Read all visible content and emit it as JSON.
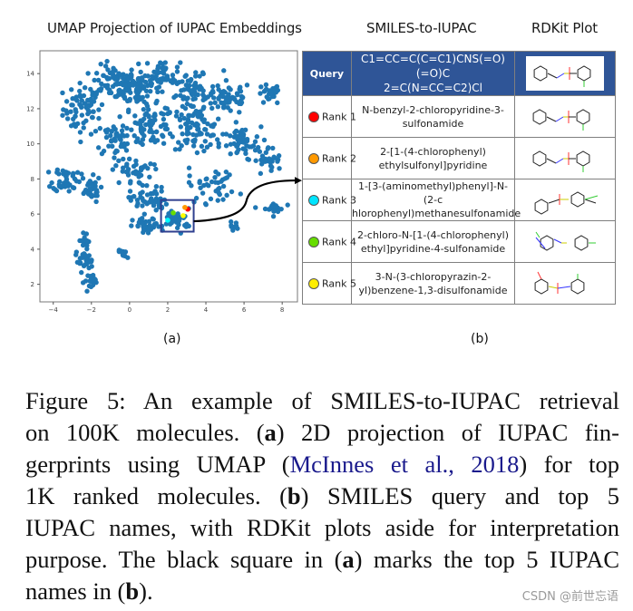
{
  "panel_titles": {
    "umap": "UMAP Projection of IUPAC Embeddings",
    "smiles_to_iupac": "SMILES-to-IUPAC",
    "rdkit": "RDKit Plot"
  },
  "chart_data": {
    "type": "scatter",
    "title": "UMAP Projection of IUPAC Embeddings",
    "xlabel": "",
    "ylabel": "",
    "xlim": [
      -4.7,
      8.8
    ],
    "ylim": [
      1.0,
      15.3
    ],
    "xticks": [
      -4,
      -2,
      0,
      2,
      4,
      6,
      8
    ],
    "yticks": [
      2,
      4,
      6,
      8,
      10,
      12,
      14
    ],
    "grid": false,
    "point_color": "#1f77b4",
    "n_points_approx": 1000,
    "clusters": [
      {
        "cx": -2.4,
        "cy": 12.0,
        "sx": 0.9,
        "sy": 1.2,
        "n": 70
      },
      {
        "cx": -0.8,
        "cy": 13.5,
        "sx": 1.0,
        "sy": 0.8,
        "n": 70
      },
      {
        "cx": 0.5,
        "cy": 13.2,
        "sx": 0.9,
        "sy": 1.0,
        "n": 80
      },
      {
        "cx": 1.8,
        "cy": 14.0,
        "sx": 0.7,
        "sy": 0.6,
        "n": 40
      },
      {
        "cx": 3.3,
        "cy": 12.8,
        "sx": 1.0,
        "sy": 0.9,
        "n": 70
      },
      {
        "cx": 5.2,
        "cy": 12.6,
        "sx": 1.0,
        "sy": 0.8,
        "n": 60
      },
      {
        "cx": 7.3,
        "cy": 12.8,
        "sx": 0.5,
        "sy": 0.5,
        "n": 25
      },
      {
        "cx": 1.2,
        "cy": 11.0,
        "sx": 1.0,
        "sy": 0.9,
        "n": 70
      },
      {
        "cx": 3.5,
        "cy": 10.8,
        "sx": 1.1,
        "sy": 0.9,
        "n": 80
      },
      {
        "cx": 5.8,
        "cy": 10.0,
        "sx": 0.9,
        "sy": 0.8,
        "n": 50
      },
      {
        "cx": -0.6,
        "cy": 10.3,
        "sx": 1.0,
        "sy": 0.9,
        "n": 45
      },
      {
        "cx": 7.3,
        "cy": 9.0,
        "sx": 0.6,
        "sy": 0.7,
        "n": 30
      },
      {
        "cx": -3.3,
        "cy": 8.0,
        "sx": 0.6,
        "sy": 0.6,
        "n": 45
      },
      {
        "cx": -2.1,
        "cy": 7.4,
        "sx": 0.5,
        "sy": 0.6,
        "n": 30
      },
      {
        "cx": 0.1,
        "cy": 8.4,
        "sx": 0.9,
        "sy": 0.7,
        "n": 40
      },
      {
        "cx": 1.0,
        "cy": 6.8,
        "sx": 0.8,
        "sy": 0.6,
        "n": 50
      },
      {
        "cx": 0.9,
        "cy": 5.3,
        "sx": 0.6,
        "sy": 0.4,
        "n": 35
      },
      {
        "cx": 2.5,
        "cy": 5.7,
        "sx": 0.6,
        "sy": 0.5,
        "n": 35
      },
      {
        "cx": 4.4,
        "cy": 7.6,
        "sx": 1.1,
        "sy": 0.8,
        "n": 40
      },
      {
        "cx": 5.4,
        "cy": 5.3,
        "sx": 0.2,
        "sy": 0.2,
        "n": 8
      },
      {
        "cx": 7.5,
        "cy": 6.3,
        "sx": 0.5,
        "sy": 0.3,
        "n": 22
      },
      {
        "cx": -2.3,
        "cy": 4.5,
        "sx": 0.3,
        "sy": 0.4,
        "n": 15
      },
      {
        "cx": -2.4,
        "cy": 3.3,
        "sx": 0.4,
        "sy": 0.4,
        "n": 25
      },
      {
        "cx": -1.9,
        "cy": 2.2,
        "sx": 0.4,
        "sy": 0.35,
        "n": 20
      },
      {
        "cx": -0.3,
        "cy": 3.7,
        "sx": 0.3,
        "sy": 0.2,
        "n": 10
      }
    ],
    "highlight_box": {
      "x0": 1.65,
      "x1": 3.36,
      "y0": 5.0,
      "y1": 6.8,
      "color": "#2f3f8f"
    },
    "highlighted_points": [
      {
        "rank": 1,
        "x": 3.05,
        "y": 6.28,
        "color": "#ff0000"
      },
      {
        "rank": 2,
        "x": 2.9,
        "y": 6.38,
        "color": "#ff9900"
      },
      {
        "rank": 3,
        "x": 2.0,
        "y": 5.65,
        "color": "#00ffff"
      },
      {
        "rank": 4,
        "x": 2.29,
        "y": 6.07,
        "color": "#66dd00"
      },
      {
        "rank": 5,
        "x": 2.81,
        "y": 5.91,
        "color": "#ffff00"
      }
    ]
  },
  "table": {
    "query": {
      "label": "Query",
      "smiles_line1": "C1=CC=C(C=C1)CNS(=O)(=O)C",
      "smiles_line2": "2=C(N=CC=C2)Cl",
      "header_color": "#2f5597"
    },
    "rows": [
      {
        "rank": "Rank 1",
        "color": "#ff0000",
        "name_line1": "N-benzyl-2-chloropyridine-3-",
        "name_line2": "sulfonamide",
        "plot": "rdkit-structure-rank1"
      },
      {
        "rank": "Rank 2",
        "color": "#ff9900",
        "name_line1": "2-[1-(4-chlorophenyl)",
        "name_line2": "ethylsulfonyl]pyridine",
        "plot": "rdkit-structure-rank2"
      },
      {
        "rank": "Rank 3",
        "color": "#00e5ff",
        "name_line1": "1-[3-(aminomethyl)phenyl]-N-(2-c",
        "name_line2": "hlorophenyl)methanesulfonamide",
        "plot": "rdkit-structure-rank3"
      },
      {
        "rank": "Rank 4",
        "color": "#66dd00",
        "name_line1": "2-chloro-N-[1-(4-chlorophenyl)",
        "name_line2": "ethyl]pyridine-4-sulfonamide",
        "plot": "rdkit-structure-rank4"
      },
      {
        "rank": "Rank 5",
        "color": "#ffee00",
        "name_line1": "3-N-(3-chloropyrazin-2-",
        "name_line2": "yl)benzene-1,3-disulfonamide",
        "plot": "rdkit-structure-rank5"
      }
    ]
  },
  "sublabels": {
    "a": "(a)",
    "b": "(b)"
  },
  "caption": {
    "lines": [
      [
        "Figure 5: An example of SMILES-to-IUPAC retrieval"
      ],
      [
        "on 100K molecules.  (",
        {
          "b": "a"
        },
        ") 2D projection of IUPAC fin-"
      ],
      [
        "gerprints using UMAP (",
        {
          "cite": "McInnes et al., 2018"
        },
        ") for top"
      ],
      [
        "1K ranked molecules.  (",
        {
          "b": "b"
        },
        ") SMILES query and top 5"
      ],
      [
        "IUPAC names, with RDKit plots aside for interpretation"
      ],
      [
        "purpose. The black square in (",
        {
          "b": "a"
        },
        ") marks the top 5 IUPAC"
      ],
      [
        "names in (",
        {
          "b": "b"
        },
        ")."
      ]
    ]
  },
  "watermark": "CSDN @前世忘语"
}
